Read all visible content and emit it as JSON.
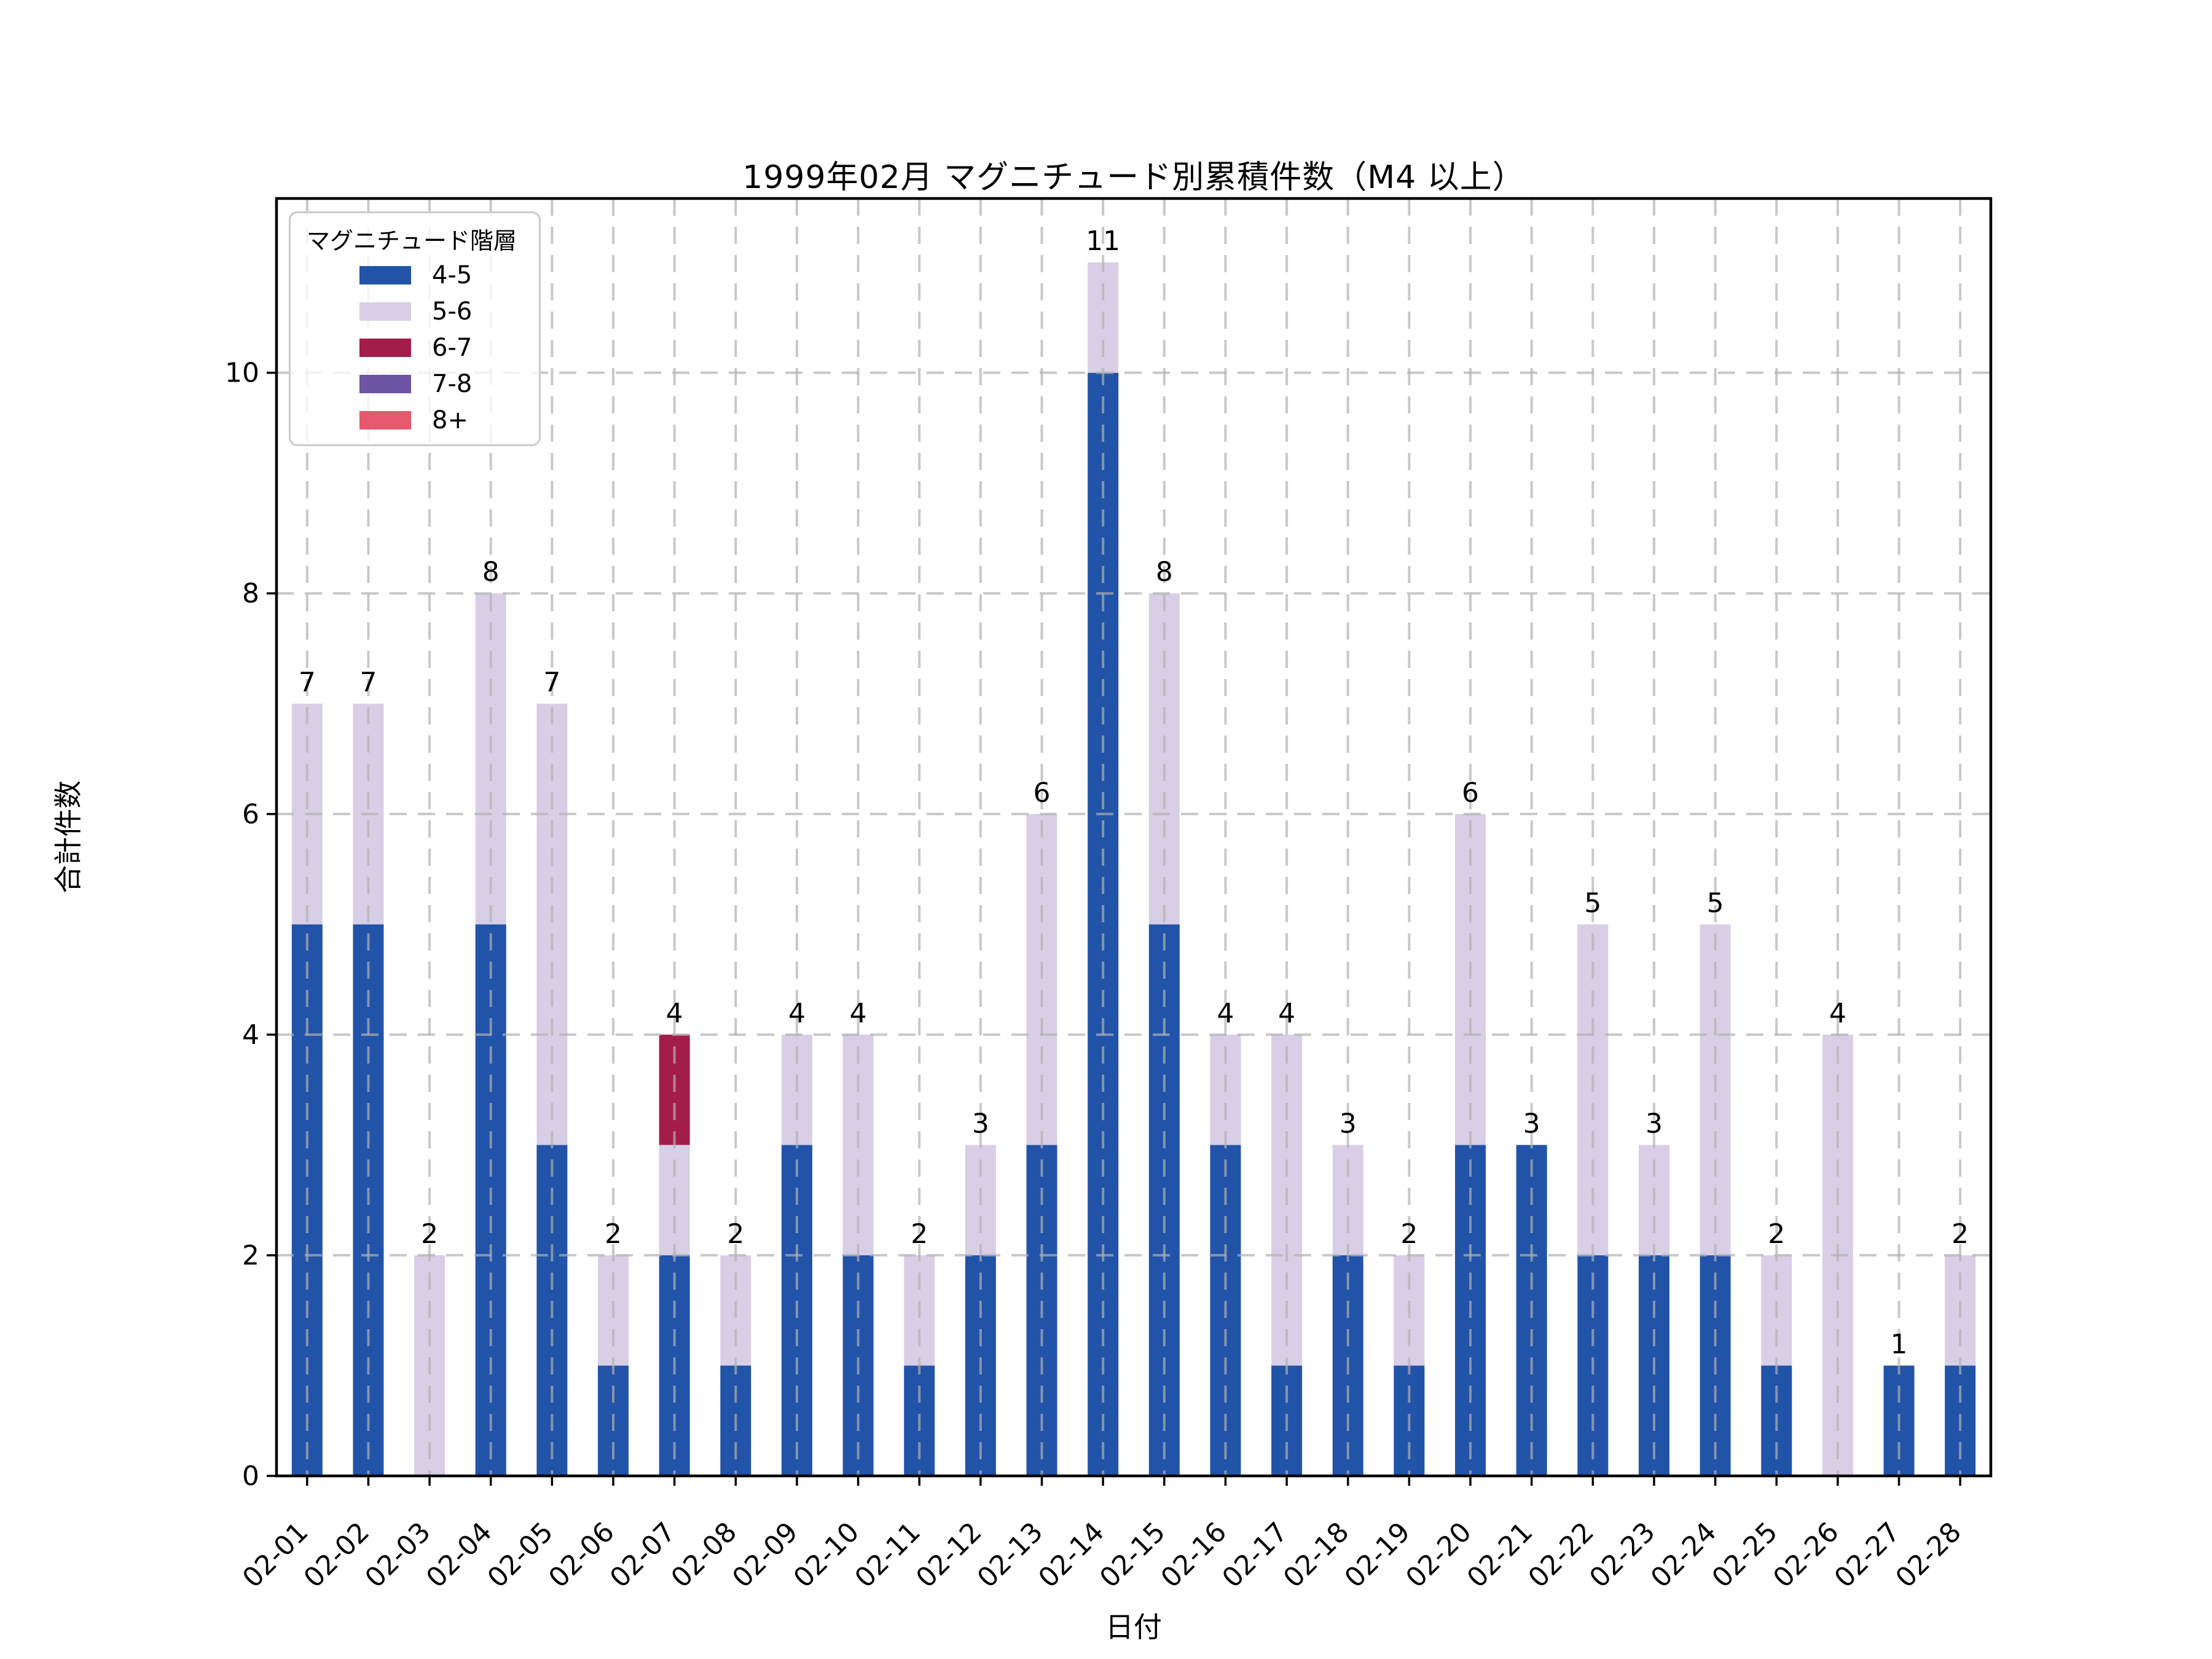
{
  "chart_data": {
    "type": "bar",
    "stacked": true,
    "title": "1999年02月 マグニチュード別累積件数（M4 以上）",
    "xlabel": "日付",
    "ylabel": "合計件数",
    "legend_title": "マグニチュード階層",
    "legend_position": "upper left",
    "grid": true,
    "categories": [
      "02-01",
      "02-02",
      "02-03",
      "02-04",
      "02-05",
      "02-06",
      "02-07",
      "02-08",
      "02-09",
      "02-10",
      "02-11",
      "02-12",
      "02-13",
      "02-14",
      "02-15",
      "02-16",
      "02-17",
      "02-18",
      "02-19",
      "02-20",
      "02-21",
      "02-22",
      "02-23",
      "02-24",
      "02-25",
      "02-26",
      "02-27",
      "02-28"
    ],
    "series": [
      {
        "name": "4-5",
        "color": "#2153A8",
        "values": [
          5,
          5,
          0,
          5,
          3,
          1,
          2,
          1,
          3,
          2,
          1,
          2,
          3,
          10,
          5,
          3,
          1,
          2,
          1,
          3,
          3,
          2,
          2,
          2,
          1,
          0,
          1,
          1
        ]
      },
      {
        "name": "5-6",
        "color": "#D8CFE6",
        "values": [
          2,
          2,
          2,
          3,
          4,
          1,
          1,
          1,
          1,
          2,
          1,
          1,
          3,
          1,
          3,
          1,
          3,
          1,
          1,
          3,
          0,
          3,
          1,
          3,
          1,
          4,
          0,
          1
        ]
      },
      {
        "name": "6-7",
        "color": "#A31D4A",
        "values": [
          0,
          0,
          0,
          0,
          0,
          0,
          1,
          0,
          0,
          0,
          0,
          0,
          0,
          0,
          0,
          0,
          0,
          0,
          0,
          0,
          0,
          0,
          0,
          0,
          0,
          0,
          0,
          0
        ]
      },
      {
        "name": "7-8",
        "color": "#6D54A5",
        "values": [
          0,
          0,
          0,
          0,
          0,
          0,
          0,
          0,
          0,
          0,
          0,
          0,
          0,
          0,
          0,
          0,
          0,
          0,
          0,
          0,
          0,
          0,
          0,
          0,
          0,
          0,
          0,
          0
        ]
      },
      {
        "name": "8+",
        "color": "#E6586B",
        "values": [
          0,
          0,
          0,
          0,
          0,
          0,
          0,
          0,
          0,
          0,
          0,
          0,
          0,
          0,
          0,
          0,
          0,
          0,
          0,
          0,
          0,
          0,
          0,
          0,
          0,
          0,
          0,
          0
        ]
      }
    ],
    "totals": [
      7,
      7,
      2,
      8,
      7,
      2,
      4,
      2,
      4,
      4,
      2,
      3,
      6,
      11,
      8,
      4,
      4,
      3,
      2,
      6,
      3,
      5,
      3,
      5,
      2,
      4,
      1,
      2
    ],
    "yticks": [
      0,
      2,
      4,
      6,
      8,
      10
    ],
    "ylim": [
      0,
      11.58
    ],
    "axis_color": "#000000",
    "grid_color": "#b0b0b0"
  }
}
